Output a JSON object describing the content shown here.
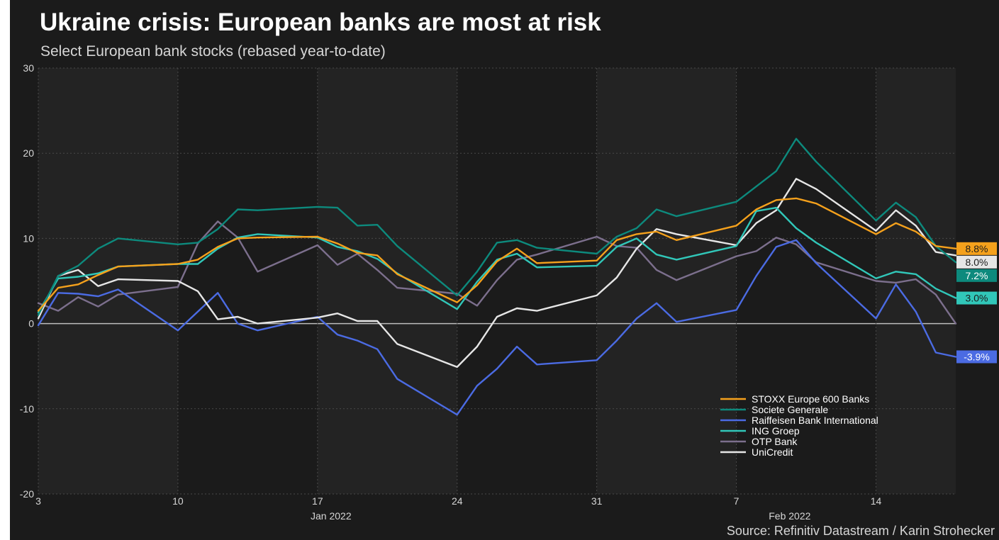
{
  "title": "Ukraine crisis: European banks are most at risk",
  "subtitle": "Select European bank stocks (rebased year-to-date)",
  "source": "Source: Refinitiv Datastream / Karin Strohecker",
  "chart_data": {
    "type": "line",
    "title": "Ukraine crisis: European banks are most at risk",
    "subtitle": "Select European bank stocks (rebased year-to-date)",
    "ylim": [
      -20,
      30
    ],
    "yticks": [
      -20,
      -10,
      0,
      10,
      20,
      30
    ],
    "x": [
      "2022-01-03",
      "2022-01-04",
      "2022-01-05",
      "2022-01-06",
      "2022-01-07",
      "2022-01-10",
      "2022-01-11",
      "2022-01-12",
      "2022-01-13",
      "2022-01-14",
      "2022-01-17",
      "2022-01-18",
      "2022-01-19",
      "2022-01-20",
      "2022-01-21",
      "2022-01-24",
      "2022-01-25",
      "2022-01-26",
      "2022-01-27",
      "2022-01-28",
      "2022-01-31",
      "2022-02-01",
      "2022-02-02",
      "2022-02-03",
      "2022-02-04",
      "2022-02-07",
      "2022-02-08",
      "2022-02-09",
      "2022-02-10",
      "2022-02-11",
      "2022-02-14",
      "2022-02-15",
      "2022-02-16",
      "2022-02-17",
      "2022-02-18"
    ],
    "xticks": [
      {
        "date": "2022-01-03",
        "label": "3"
      },
      {
        "date": "2022-01-10",
        "label": "10"
      },
      {
        "date": "2022-01-17",
        "label": "17"
      },
      {
        "date": "2022-01-24",
        "label": "24"
      },
      {
        "date": "2022-01-31",
        "label": "31"
      },
      {
        "date": "2022-02-07",
        "label": "7"
      },
      {
        "date": "2022-02-14",
        "label": "14"
      }
    ],
    "month_labels": [
      {
        "date": "2022-01-17",
        "label": "Jan 2022"
      },
      {
        "date": "2022-02-09",
        "label": "Feb 2022"
      }
    ],
    "shaded_weeks": [
      {
        "start": "2022-01-03",
        "end": "2022-01-10"
      },
      {
        "start": "2022-01-17",
        "end": "2022-01-24"
      },
      {
        "start": "2022-01-31",
        "end": "2022-02-07"
      },
      {
        "start": "2022-02-14",
        "end": "2022-02-18"
      }
    ],
    "grid": true,
    "legend_position": "bottom-right",
    "series": [
      {
        "name": "STOXX Europe 600 Banks",
        "color": "#f5a11c",
        "end_label": "8.8%",
        "values": [
          1.5,
          4.2,
          4.6,
          5.7,
          6.7,
          7.0,
          7.5,
          9.0,
          10.0,
          10.1,
          10.2,
          9.4,
          8.3,
          8.0,
          5.8,
          2.5,
          4.5,
          7.3,
          8.8,
          7.1,
          7.4,
          9.8,
          10.5,
          10.8,
          9.8,
          11.5,
          13.4,
          14.5,
          14.7,
          14.1,
          10.5,
          11.8,
          10.8,
          9.1,
          8.8
        ]
      },
      {
        "name": "Societe Generale",
        "color": "#0d8a7d",
        "end_label": "7.2%",
        "values": [
          1.0,
          5.6,
          6.8,
          8.8,
          10.0,
          9.3,
          9.5,
          11.1,
          13.4,
          13.3,
          13.7,
          13.6,
          11.5,
          11.6,
          9.1,
          3.3,
          6.1,
          9.5,
          9.8,
          8.9,
          8.2,
          10.2,
          11.2,
          13.4,
          12.6,
          14.3,
          16.1,
          17.9,
          21.7,
          19.0,
          12.1,
          14.2,
          12.5,
          9.1,
          7.2
        ]
      },
      {
        "name": "Raiffeisen Bank International",
        "color": "#4b6be3",
        "end_label": "-3.9%",
        "values": [
          -0.2,
          3.6,
          3.5,
          3.2,
          4.0,
          -0.8,
          1.4,
          3.6,
          0.0,
          -0.8,
          0.8,
          -1.3,
          -2.0,
          -3.0,
          -6.5,
          -10.7,
          -7.3,
          -5.3,
          -2.7,
          -4.8,
          -4.3,
          -2.0,
          0.6,
          2.4,
          0.2,
          1.6,
          5.6,
          9.0,
          9.8,
          7.1,
          0.6,
          4.6,
          1.4,
          -3.4,
          -3.9
        ]
      },
      {
        "name": "ING Groep",
        "color": "#31c7b9",
        "end_label": "3.0%",
        "values": [
          1.3,
          5.3,
          5.5,
          5.9,
          6.7,
          7.0,
          7.0,
          8.8,
          10.1,
          10.5,
          10.1,
          9.0,
          8.5,
          7.6,
          5.9,
          1.7,
          4.9,
          7.5,
          8.2,
          6.6,
          6.8,
          9.0,
          10.0,
          8.1,
          7.5,
          9.1,
          13.2,
          13.6,
          11.2,
          9.5,
          5.3,
          6.1,
          5.8,
          4.1,
          3.0
        ]
      },
      {
        "name": "OTP Bank",
        "color": "#7c6f8d",
        "end_label": "",
        "values": [
          2.4,
          1.5,
          3.1,
          2.0,
          3.4,
          4.3,
          9.4,
          12.0,
          10.1,
          6.1,
          9.2,
          6.9,
          8.2,
          6.3,
          4.2,
          3.5,
          2.1,
          5.1,
          7.5,
          8.1,
          10.2,
          9.1,
          8.9,
          6.3,
          5.1,
          7.9,
          8.5,
          10.1,
          9.3,
          7.2,
          5.0,
          4.8,
          5.2,
          3.4,
          0.0
        ]
      },
      {
        "name": "UniCredit",
        "color": "#e6e6e6",
        "end_label": "8.0%",
        "values": [
          0.6,
          5.6,
          6.3,
          4.4,
          5.2,
          5.0,
          3.8,
          0.5,
          0.8,
          0.0,
          0.7,
          1.2,
          0.3,
          0.3,
          -2.4,
          -5.1,
          -2.7,
          0.8,
          1.8,
          1.5,
          3.3,
          5.4,
          8.8,
          11.1,
          10.5,
          9.2,
          11.8,
          13.3,
          17.0,
          15.8,
          10.9,
          13.3,
          11.5,
          8.4,
          8.0
        ]
      }
    ]
  }
}
